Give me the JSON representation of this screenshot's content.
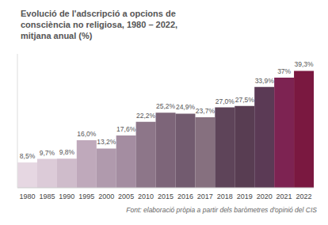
{
  "chart_data": {
    "type": "bar",
    "title": "Evolució de l'adscripció a opcions de consciència no religiosa,  1980 – 2022, mitjana anual (%)",
    "annotations": [
      "Font: elaboració pròpia a partir dels baròmetres d'opinió del CIS"
    ],
    "categories": [
      "1980",
      "1985",
      "1990",
      "1995",
      "2000",
      "2005",
      "2010",
      "2015",
      "2016",
      "2017",
      "2018",
      "2019",
      "2020",
      "2021",
      "2022"
    ],
    "values": [
      8.5,
      9.7,
      9.8,
      16.0,
      13.2,
      17.6,
      22.2,
      25.2,
      24.9,
      23.7,
      27.0,
      27.5,
      33.9,
      37,
      39.3
    ],
    "value_labels": [
      "8,5%",
      "9,7%",
      "9,8%",
      "16,0%",
      "13,2%",
      "17,6%",
      "22,2%",
      "25,2%",
      "24,9%",
      "23,7%",
      "27,0%",
      "27,5%",
      "33,9%",
      "37%",
      "39,3%"
    ],
    "colors": [
      "#e6d7e2",
      "#dccbd8",
      "#cfbccb",
      "#bfa9bb",
      "#b09aad",
      "#a48da1",
      "#8d7689",
      "#7d6579",
      "#725b6f",
      "#86707f",
      "#5e4459",
      "#583d52",
      "#5b3a55",
      "#7d2352",
      "#7a1840"
    ],
    "ylim": [
      0,
      45
    ],
    "data_labels": true,
    "tick_labels": "x",
    "grid": false
  }
}
